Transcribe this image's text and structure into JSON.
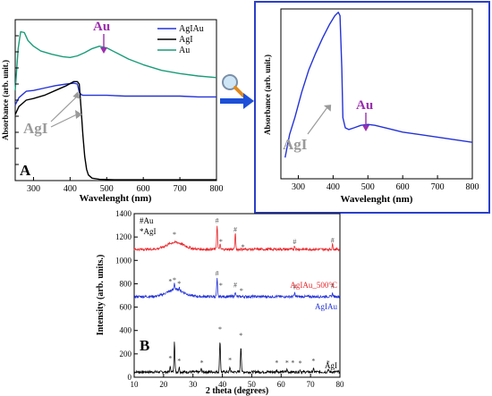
{
  "colors": {
    "blue": "#2433d6",
    "black": "#000000",
    "green": "#1a9c78",
    "red": "#e8262b",
    "purple": "#9b2fae",
    "gray": "#9a9a9a",
    "frame": "#2a3fc9",
    "arrow": "#1d4fd8"
  },
  "icons": {
    "zoom": "magnifier-icon",
    "link": "right-arrow-icon"
  },
  "chart_data": [
    {
      "type": "line",
      "panel_label": "A",
      "xlabel": "Wavelenght (nm)",
      "ylabel": "Absorbance (arb. unit.)",
      "xlim": [
        250,
        800
      ],
      "ylim": [
        0,
        10
      ],
      "xticks": [
        "300",
        "400",
        "500",
        "600",
        "700",
        "800"
      ],
      "legend": "top-right",
      "annotations": [
        {
          "text": "Au",
          "x": 485,
          "y": 9.9,
          "color": "purple"
        },
        {
          "text": "AgI",
          "x": 300,
          "y": 3.4,
          "color": "gray"
        }
      ],
      "series": [
        {
          "name": "AgIAu",
          "color": "blue",
          "x": [
            250,
            260,
            270,
            280,
            300,
            330,
            360,
            390,
            410,
            420,
            425,
            430,
            435,
            450,
            500,
            550,
            600,
            650,
            700,
            750,
            800
          ],
          "y": [
            4.7,
            5.15,
            5.35,
            5.55,
            5.6,
            5.75,
            5.9,
            6.0,
            6.05,
            6.0,
            5.5,
            5.35,
            5.3,
            5.3,
            5.3,
            5.25,
            5.25,
            5.25,
            5.25,
            5.2,
            5.2
          ]
        },
        {
          "name": "AgI",
          "color": "black",
          "x": [
            250,
            260,
            270,
            280,
            300,
            330,
            360,
            390,
            410,
            420,
            425,
            430,
            435,
            440,
            445,
            450,
            460,
            480,
            520,
            600,
            700,
            800
          ],
          "y": [
            4.1,
            4.6,
            4.8,
            5.0,
            5.1,
            5.3,
            5.6,
            5.9,
            6.15,
            6.15,
            6.0,
            4.5,
            2.8,
            1.5,
            0.7,
            0.35,
            0.15,
            0.08,
            0.05,
            0.05,
            0.05,
            0.05
          ]
        },
        {
          "name": "Au",
          "color": "green",
          "x": [
            250,
            258,
            265,
            275,
            285,
            300,
            320,
            350,
            380,
            400,
            420,
            440,
            460,
            480,
            500,
            530,
            560,
            600,
            650,
            700,
            750,
            800
          ],
          "y": [
            5.6,
            8.2,
            9.25,
            9.2,
            8.7,
            8.35,
            8.05,
            7.85,
            7.7,
            7.65,
            7.75,
            7.95,
            8.2,
            8.35,
            8.25,
            7.9,
            7.55,
            7.2,
            6.85,
            6.65,
            6.5,
            6.4
          ]
        }
      ]
    },
    {
      "type": "line",
      "xlabel": "Wavelenght (nm)",
      "ylabel": "Absorbance (arb. unit.)",
      "xlim": [
        250,
        800
      ],
      "ylim": [
        0,
        10
      ],
      "xticks": [
        "300",
        "400",
        "500",
        "600",
        "700",
        "800"
      ],
      "annotations": [
        {
          "text": "Au",
          "x": 505,
          "y": 4.2,
          "color": "purple"
        },
        {
          "text": "AgI",
          "x": 310,
          "y": 2.1,
          "color": "gray"
        }
      ],
      "series": [
        {
          "color": "blue",
          "x": [
            262,
            275,
            290,
            310,
            330,
            350,
            370,
            390,
            405,
            415,
            420,
            425,
            428,
            435,
            445,
            460,
            480,
            500,
            520,
            560,
            600,
            650,
            700,
            750,
            800
          ],
          "y": [
            1.25,
            2.6,
            3.6,
            5.1,
            6.4,
            7.4,
            8.3,
            9.1,
            9.6,
            9.8,
            9.6,
            6.5,
            3.6,
            3.0,
            2.9,
            3.0,
            3.15,
            3.2,
            3.15,
            2.95,
            2.75,
            2.6,
            2.45,
            2.3,
            2.15
          ]
        }
      ]
    },
    {
      "type": "line",
      "panel_label": "B",
      "xlabel": "2 theta (degrees)",
      "ylabel": "Intensity (arb. units.)",
      "xlim": [
        10,
        80
      ],
      "ylim": [
        0,
        1400
      ],
      "xticks": [
        "10",
        "20",
        "30",
        "40",
        "50",
        "60",
        "70",
        "80"
      ],
      "yticks": [
        "0",
        "200",
        "400",
        "600",
        "800",
        "1000",
        "1200",
        "1400"
      ],
      "legend_labels": [
        "#Au",
        "*AgI"
      ],
      "series": [
        {
          "name": "AgI",
          "color": "black",
          "baseline": 45,
          "peaks": [
            [
              22.3,
              45
            ],
            [
              23.7,
              270
            ],
            [
              25.3,
              40
            ],
            [
              32.8,
              25
            ],
            [
              39.2,
              270
            ],
            [
              42.6,
              40
            ],
            [
              46.3,
              220
            ],
            [
              58.5,
              20
            ],
            [
              62,
              20
            ],
            [
              66.5,
              18
            ],
            [
              71,
              25
            ],
            [
              76,
              25
            ]
          ]
        },
        {
          "name": "AgIAu",
          "color": "blue",
          "baseline": 690,
          "peaks": [
            [
              23.7,
              60
            ],
            [
              25.3,
              25
            ],
            [
              38.2,
              150
            ],
            [
              44.4,
              45
            ],
            [
              64.6,
              30
            ],
            [
              77.5,
              30
            ]
          ]
        },
        {
          "name": "AgIAu_500°C",
          "color": "red",
          "baseline": 1095,
          "peaks": [
            [
              38.2,
              210
            ],
            [
              39.2,
              40
            ],
            [
              44.4,
              130
            ],
            [
              64.6,
              30
            ],
            [
              77.5,
              40
            ]
          ]
        }
      ],
      "markers": [
        {
          "t": "*",
          "x": 23.7,
          "y": 1200
        },
        {
          "t": "#",
          "x": 38.2,
          "y": 1320
        },
        {
          "t": "*",
          "x": 39.5,
          "y": 1140
        },
        {
          "t": "#",
          "x": 44.4,
          "y": 1245
        },
        {
          "t": "*",
          "x": 47,
          "y": 1095
        },
        {
          "t": "#",
          "x": 64.6,
          "y": 1140
        },
        {
          "t": "#",
          "x": 77.5,
          "y": 1150
        },
        {
          "t": "*",
          "x": 22.3,
          "y": 800
        },
        {
          "t": "*",
          "x": 23.7,
          "y": 810
        },
        {
          "t": "*",
          "x": 25.3,
          "y": 780
        },
        {
          "t": "#",
          "x": 38.2,
          "y": 870
        },
        {
          "t": "*",
          "x": 39.5,
          "y": 765
        },
        {
          "t": "#",
          "x": 44.4,
          "y": 770
        },
        {
          "t": "*",
          "x": 46.5,
          "y": 720
        },
        {
          "t": "#",
          "x": 64.6,
          "y": 755
        },
        {
          "t": "#",
          "x": 77.5,
          "y": 760
        },
        {
          "t": "*",
          "x": 22.3,
          "y": 140
        },
        {
          "t": "*",
          "x": 25.3,
          "y": 120
        },
        {
          "t": "*",
          "x": 33,
          "y": 105
        },
        {
          "t": "*",
          "x": 39.2,
          "y": 390
        },
        {
          "t": "*",
          "x": 42.6,
          "y": 125
        },
        {
          "t": "*",
          "x": 46.3,
          "y": 335
        },
        {
          "t": "*",
          "x": 58.5,
          "y": 105
        },
        {
          "t": "*",
          "x": 62,
          "y": 105
        },
        {
          "t": "*",
          "x": 64,
          "y": 105
        },
        {
          "t": "*",
          "x": 66.5,
          "y": 100
        },
        {
          "t": "*",
          "x": 71,
          "y": 120
        },
        {
          "t": "*",
          "x": 76,
          "y": 105
        }
      ]
    }
  ]
}
